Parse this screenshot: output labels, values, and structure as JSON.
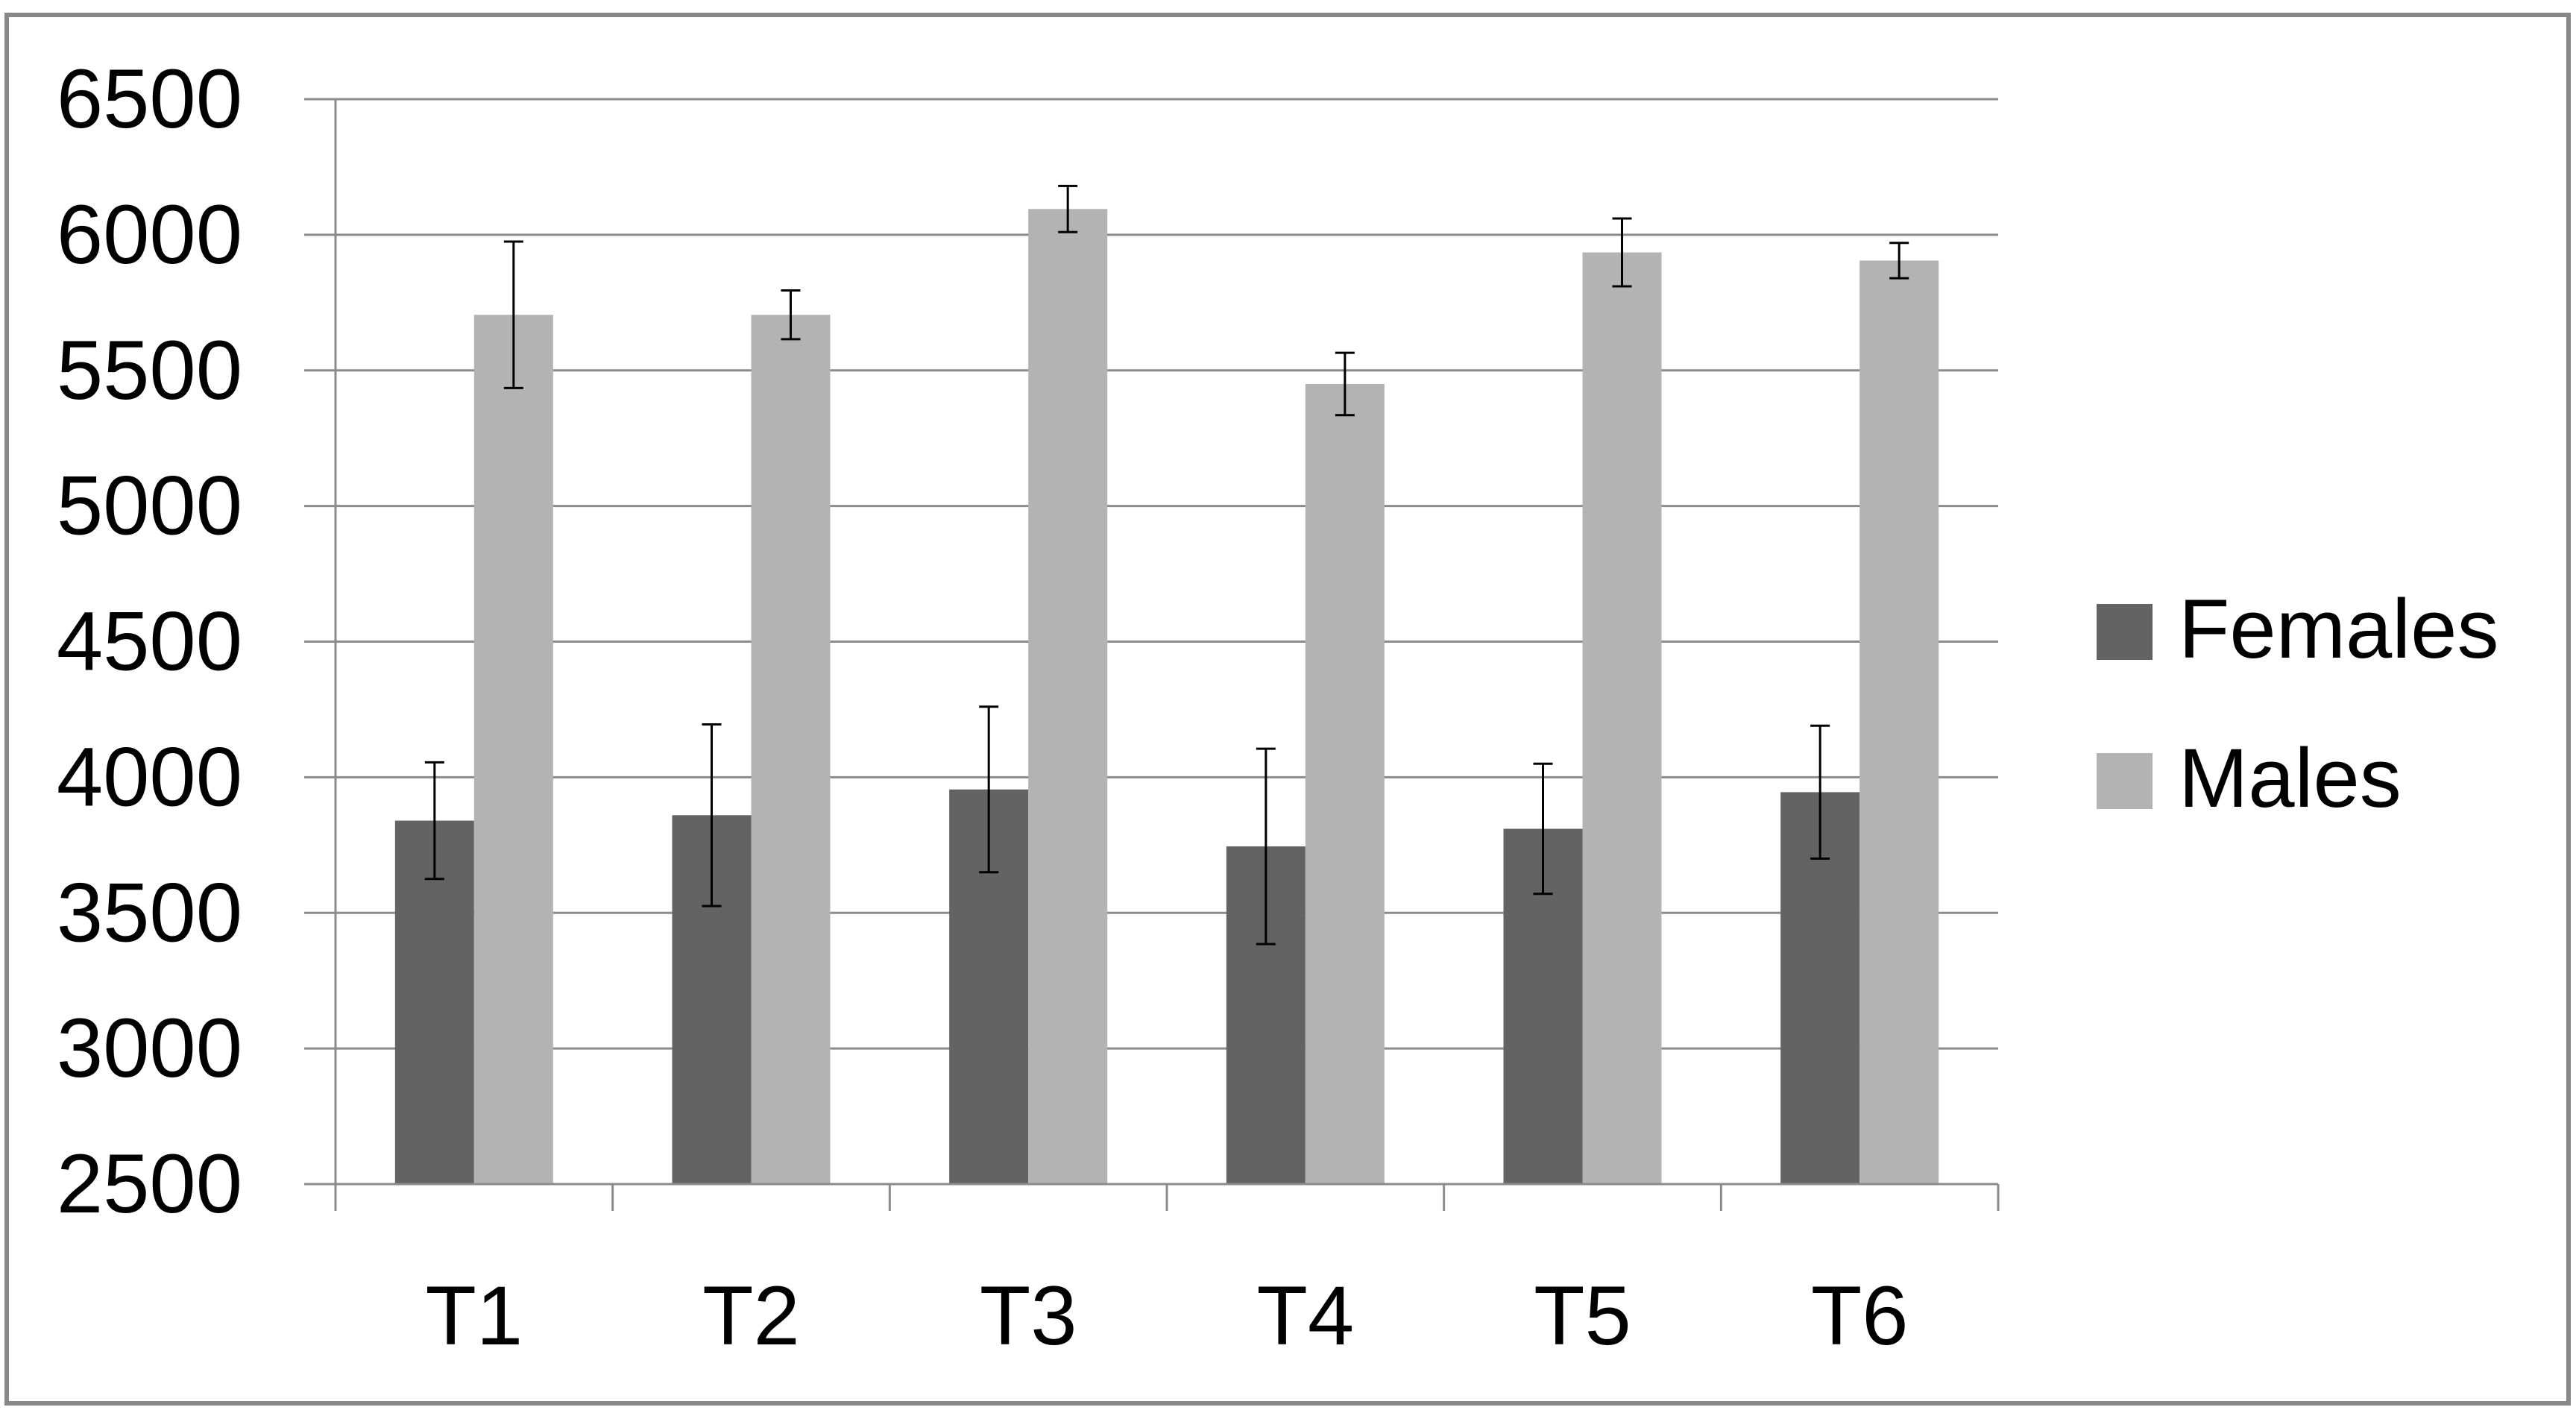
{
  "chart_data": {
    "type": "bar",
    "title": "",
    "xlabel": "",
    "ylabel": "",
    "categories": [
      "T1",
      "T2",
      "T3",
      "T4",
      "T5",
      "T6"
    ],
    "ylim": [
      2500,
      6500
    ],
    "yticks": [
      "2500",
      "3000",
      "3500",
      "4000",
      "4500",
      "5000",
      "5500",
      "6000",
      "6500"
    ],
    "grid": true,
    "legend_position": "right",
    "series": [
      {
        "name": "Females",
        "color": "#636363",
        "values": [
          3840,
          3860,
          3955,
          3745,
          3810,
          3945
        ],
        "error": [
          215,
          335,
          305,
          360,
          240,
          245
        ]
      },
      {
        "name": "Males",
        "color": "#b3b3b3",
        "values": [
          5705,
          5705,
          6095,
          5450,
          5935,
          5905
        ],
        "error": [
          270,
          90,
          85,
          115,
          125,
          65
        ]
      }
    ]
  }
}
